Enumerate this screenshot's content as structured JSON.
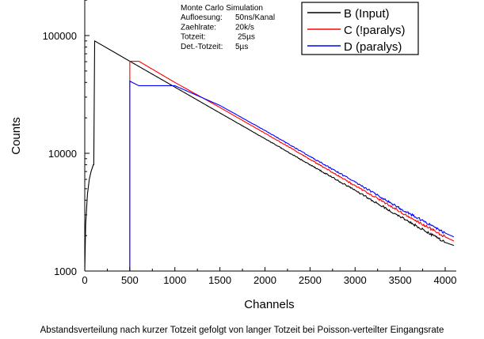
{
  "chart_data": {
    "type": "line",
    "xlabel": "Channels",
    "ylabel": "Counts",
    "xlim": [
      0,
      4096
    ],
    "ylim": [
      1000,
      200000
    ],
    "yscale": "log",
    "grid": false,
    "legend_position": "top-right",
    "x_ticks": [
      0,
      500,
      1000,
      1500,
      2000,
      2500,
      3000,
      3500,
      4000
    ],
    "x_tick_labels": [
      "0",
      "500",
      "1000",
      "1500",
      "2000",
      "2500",
      "3000",
      "3500",
      "4000"
    ],
    "y_ticks": [
      1000,
      10000,
      100000
    ],
    "y_tick_labels": [
      "1000",
      "10000",
      "100000"
    ],
    "annotations": [
      {
        "label": "Monte Carlo Simulation",
        "value": ""
      },
      {
        "label": "Aufloesung:",
        "value": "50ns/Kanal"
      },
      {
        "label": "Zaehlrate:",
        "value": "20k/s"
      },
      {
        "label": "Totzeit:",
        "value": "25µs"
      },
      {
        "label": "Det.-Totzeit:",
        "value": "5µs"
      }
    ],
    "series": [
      {
        "name": "B (Input)",
        "color": "#000000",
        "x": [
          0,
          10,
          30,
          50,
          70,
          95,
          100,
          110,
          500,
          1000,
          1500,
          2000,
          2500,
          3000,
          3500,
          4000,
          4096
        ],
        "y": [
          1000,
          2500,
          4500,
          6000,
          7000,
          8000,
          8000,
          90000,
          60500,
          36500,
          22000,
          13300,
          8000,
          4850,
          2900,
          1750,
          1650
        ]
      },
      {
        "name": "C (!paralys)",
        "color": "#ff0000",
        "x": [
          500,
          500,
          600,
          1000,
          1500,
          2000,
          2500,
          3000,
          3500,
          4000,
          4096
        ],
        "y": [
          1000,
          60500,
          60500,
          40000,
          24500,
          14800,
          8900,
          5300,
          3200,
          1950,
          1800
        ]
      },
      {
        "name": "D (paralys)",
        "color": "#0000ff",
        "x": [
          500,
          500,
          600,
          700,
          1000,
          1500,
          2000,
          2500,
          3000,
          3500,
          4000,
          4096
        ],
        "y": [
          1000,
          41000,
          37500,
          37500,
          37500,
          25500,
          15600,
          9400,
          5700,
          3400,
          2100,
          1950
        ]
      }
    ]
  },
  "caption": "Abstandsverteilung nach kurzer Totzeit gefolgt von langer Totzeit bei Poisson-verteilter Eingangsrate"
}
